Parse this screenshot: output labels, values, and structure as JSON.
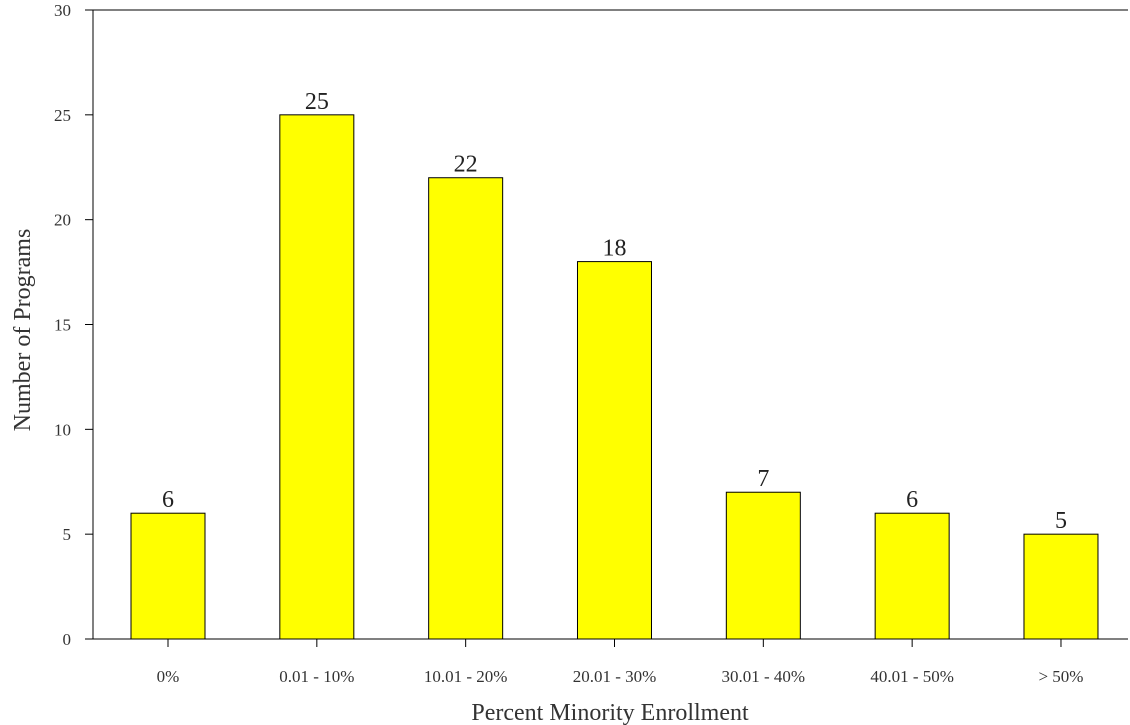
{
  "chart_data": {
    "type": "bar",
    "title": "",
    "xlabel": "Percent Minority Enrollment",
    "ylabel": "Number of Programs",
    "categories": [
      "0%",
      "0.01 - 10%",
      "10.01 - 20%",
      "20.01 - 30%",
      "30.01 - 40%",
      "40.01 - 50%",
      "> 50%"
    ],
    "values": [
      6,
      25,
      22,
      18,
      7,
      6,
      5
    ],
    "data_labels": [
      "6",
      "25",
      "22",
      "18",
      "7",
      "6",
      "5"
    ],
    "ylim": [
      0,
      30
    ],
    "yticks": [
      0,
      5,
      10,
      15,
      20,
      25,
      30
    ],
    "ytick_labels": [
      "0",
      "5",
      "10",
      "15",
      "20",
      "25",
      "30"
    ],
    "bar_color": "#ffff00",
    "grid": false,
    "legend": "none"
  }
}
